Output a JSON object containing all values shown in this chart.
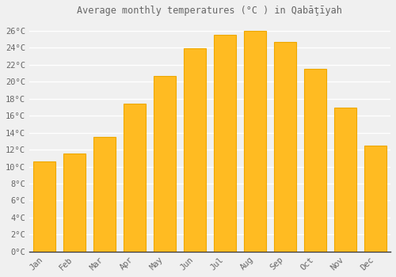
{
  "title": "Average monthly temperatures (°C ) in Qabāţīyah",
  "months": [
    "Jan",
    "Feb",
    "Mar",
    "Apr",
    "May",
    "Jun",
    "Jul",
    "Aug",
    "Sep",
    "Oct",
    "Nov",
    "Dec"
  ],
  "values": [
    10.6,
    11.5,
    13.5,
    17.4,
    20.7,
    23.9,
    25.5,
    26.0,
    24.7,
    21.5,
    16.9,
    12.5
  ],
  "bar_color": "#FFBB22",
  "bar_edge_color": "#EEA800",
  "background_color": "#F0F0F0",
  "grid_color": "#FFFFFF",
  "text_color": "#666666",
  "ylim": [
    0,
    27
  ],
  "ytick_step": 2
}
